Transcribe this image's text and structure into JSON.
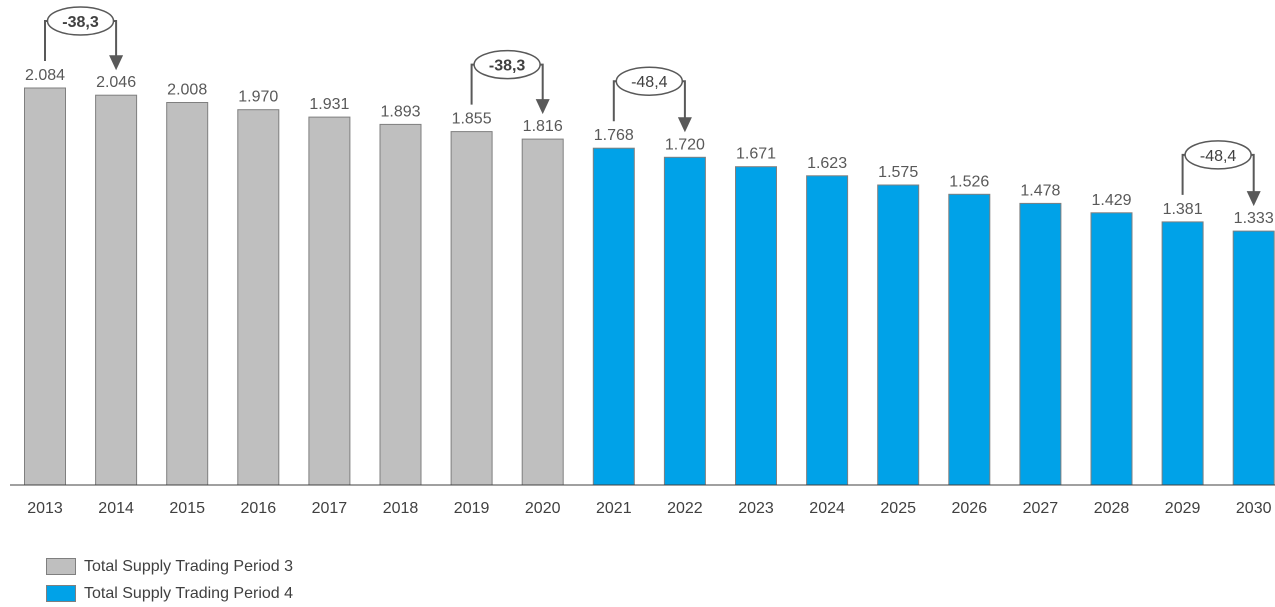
{
  "chart_data": {
    "type": "bar",
    "title": "",
    "xlabel": "",
    "ylabel": "",
    "ylim": [
      0,
      2160
    ],
    "grid": false,
    "legend_position": "bottom-left",
    "categories": [
      "2013",
      "2014",
      "2015",
      "2016",
      "2017",
      "2018",
      "2019",
      "2020",
      "2021",
      "2022",
      "2023",
      "2024",
      "2025",
      "2026",
      "2027",
      "2028",
      "2029",
      "2030"
    ],
    "series": [
      {
        "name": "Total Supply Trading Period 3",
        "color": "#bfbfbf",
        "values": [
          2084,
          2046,
          2008,
          1970,
          1931,
          1893,
          1855,
          1816,
          null,
          null,
          null,
          null,
          null,
          null,
          null,
          null,
          null,
          null
        ],
        "labels": [
          "2.084",
          "2.046",
          "2.008",
          "1.970",
          "1.931",
          "1.893",
          "1.855",
          "1.816",
          "",
          "",
          "",
          "",
          "",
          "",
          "",
          "",
          "",
          ""
        ]
      },
      {
        "name": "Total Supply Trading Period 4",
        "color": "#00a2e8",
        "values": [
          null,
          null,
          null,
          null,
          null,
          null,
          null,
          null,
          1768,
          1720,
          1671,
          1623,
          1575,
          1526,
          1478,
          1429,
          1381,
          1333
        ],
        "labels": [
          "",
          "",
          "",
          "",
          "",
          "",
          "",
          "",
          "1.768",
          "1.720",
          "1.671",
          "1.623",
          "1.575",
          "1.526",
          "1.478",
          "1.429",
          "1.381",
          "1.333"
        ]
      }
    ],
    "annotations": [
      {
        "text": "-38,3",
        "from": "2013",
        "to": "2014",
        "bold": true
      },
      {
        "text": "-38,3",
        "from": "2019",
        "to": "2020",
        "bold": true
      },
      {
        "text": "-48,4",
        "from": "2021",
        "to": "2022",
        "bold": false
      },
      {
        "text": "-48,4",
        "from": "2029",
        "to": "2030",
        "bold": false
      }
    ]
  }
}
